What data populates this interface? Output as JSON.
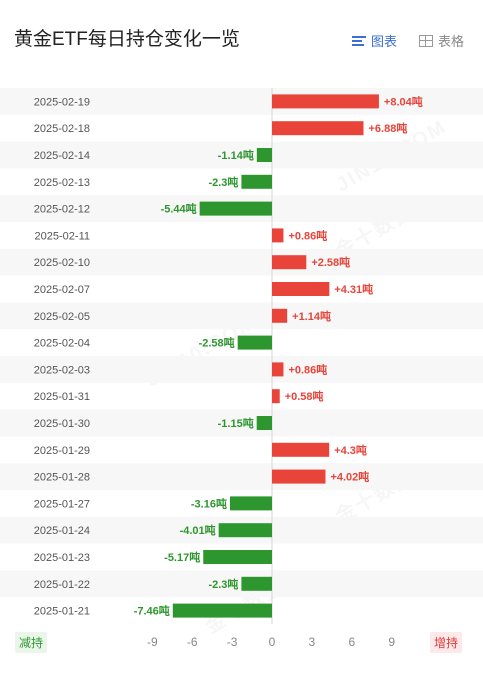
{
  "title": "黄金ETF每日持仓变化一览",
  "view_toggle": {
    "chart_label": "图表",
    "table_label": "表格",
    "chart_icon": "bar-chart-icon",
    "table_icon": "table-icon"
  },
  "legend": {
    "decrease_label": "减持",
    "increase_label": "增持"
  },
  "colors": {
    "increase": "#e8443a",
    "decrease": "#2e962e",
    "active": "#3b6fd4"
  },
  "watermarks": [
    "JIN10.COM",
    "金十数据"
  ],
  "chart_data": {
    "type": "bar",
    "orientation": "horizontal",
    "unit": "吨",
    "xlim": [
      -10.5,
      10.5
    ],
    "xticks": [
      -9,
      -6,
      -3,
      0,
      3,
      6,
      9
    ],
    "categories": [
      "2025-02-19",
      "2025-02-18",
      "2025-02-14",
      "2025-02-13",
      "2025-02-12",
      "2025-02-11",
      "2025-02-10",
      "2025-02-07",
      "2025-02-05",
      "2025-02-04",
      "2025-02-03",
      "2025-01-31",
      "2025-01-30",
      "2025-01-29",
      "2025-01-28",
      "2025-01-27",
      "2025-01-24",
      "2025-01-23",
      "2025-01-22",
      "2025-01-21"
    ],
    "values": [
      8.04,
      6.88,
      -1.14,
      -2.3,
      -5.44,
      0.86,
      2.58,
      4.31,
      1.14,
      -2.58,
      0.86,
      0.58,
      -1.15,
      4.3,
      4.02,
      -3.16,
      -4.01,
      -5.17,
      -2.3,
      -7.46
    ],
    "labels": [
      "+8.04吨",
      "+6.88吨",
      "-1.14吨",
      "-2.3吨",
      "-5.44吨",
      "+0.86吨",
      "+2.58吨",
      "+4.31吨",
      "+1.14吨",
      "-2.58吨",
      "+0.86吨",
      "+0.58吨",
      "-1.15吨",
      "+4.3吨",
      "+4.02吨",
      "-3.16吨",
      "-4.01吨",
      "-5.17吨",
      "-2.3吨",
      "-7.46吨"
    ]
  }
}
